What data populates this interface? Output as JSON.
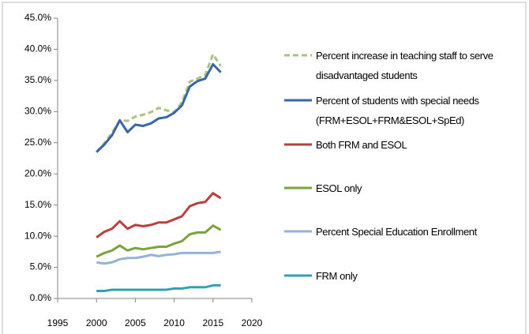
{
  "chart_data": {
    "type": "line",
    "x": [
      2000,
      2001,
      2002,
      2003,
      2004,
      2005,
      2006,
      2007,
      2008,
      2009,
      2010,
      2011,
      2012,
      2013,
      2014,
      2015,
      2016
    ],
    "series": [
      {
        "name": "Percent increase in teaching staff to serve disadvantaged students",
        "color": "#a9c47f",
        "dash": true,
        "values": [
          23.5,
          24.9,
          26.6,
          28.6,
          28.5,
          29.2,
          29.5,
          29.9,
          30.6,
          30.2,
          29.9,
          31.5,
          34.8,
          35.3,
          35.9,
          39.2,
          37.3
        ]
      },
      {
        "name": "Percent of students with special needs (FRM+ESOL+FRM&ESOL+SpEd)",
        "color": "#3a66a8",
        "values": [
          23.5,
          24.7,
          26.2,
          28.6,
          26.7,
          27.9,
          27.7,
          28.1,
          28.9,
          29.1,
          29.8,
          31.0,
          34.0,
          34.9,
          35.3,
          37.6,
          36.3
        ]
      },
      {
        "name": "Both FRM and ESOL",
        "color": "#b8403d",
        "values": [
          9.8,
          10.7,
          11.2,
          12.4,
          11.2,
          11.8,
          11.6,
          11.8,
          12.2,
          12.2,
          12.7,
          13.2,
          14.8,
          15.3,
          15.5,
          16.9,
          16.1
        ]
      },
      {
        "name": "ESOL only",
        "color": "#7aa33c",
        "values": [
          6.7,
          7.3,
          7.7,
          8.5,
          7.7,
          8.1,
          7.9,
          8.1,
          8.3,
          8.3,
          8.8,
          9.2,
          10.3,
          10.6,
          10.6,
          11.7,
          11.0
        ]
      },
      {
        "name": "Percent Special Education Enrollment",
        "color": "#95b3d7",
        "values": [
          5.8,
          5.6,
          5.8,
          6.3,
          6.5,
          6.5,
          6.7,
          7.0,
          6.8,
          7.0,
          7.1,
          7.3,
          7.3,
          7.3,
          7.3,
          7.3,
          7.5
        ]
      },
      {
        "name": "FRM only",
        "color": "#31a0b5",
        "values": [
          1.2,
          1.2,
          1.4,
          1.4,
          1.4,
          1.4,
          1.4,
          1.4,
          1.4,
          1.4,
          1.6,
          1.6,
          1.8,
          1.8,
          1.8,
          2.1,
          2.1
        ]
      }
    ],
    "xlim": [
      1995,
      2020
    ],
    "xticks": [
      1995,
      2000,
      2005,
      2010,
      2015,
      2020
    ],
    "ylim": [
      0,
      45
    ],
    "yticks": [
      {
        "value": 0,
        "label": "0.0%"
      },
      {
        "value": 5,
        "label": "5.0%"
      },
      {
        "value": 10,
        "label": "10.0%"
      },
      {
        "value": 15,
        "label": "15.0%"
      },
      {
        "value": 20,
        "label": "20.0%"
      },
      {
        "value": 25,
        "label": "25.0%"
      },
      {
        "value": 30,
        "label": "30.0%"
      },
      {
        "value": 35,
        "label": "35.0%"
      },
      {
        "value": 40,
        "label": "40.0%"
      },
      {
        "value": 45,
        "label": "45.0%"
      }
    ],
    "legend": "right"
  }
}
